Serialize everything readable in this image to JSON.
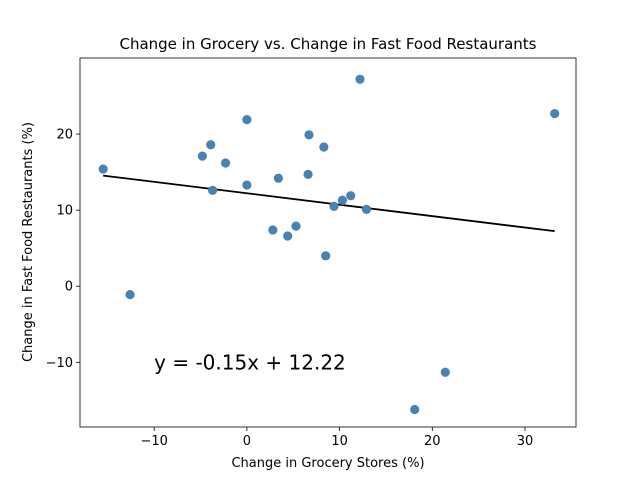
{
  "chart_data": {
    "type": "scatter",
    "title": "Change in Grocery vs. Change in Fast Food Restaurants",
    "xlabel": "Change in Grocery Stores (%)",
    "ylabel": "Change in Fast Food Restaurants (%)",
    "xlim": [
      -18,
      35.5
    ],
    "ylim": [
      -18.5,
      30
    ],
    "xticks": [
      -10,
      0,
      10,
      20,
      30
    ],
    "yticks": [
      -10,
      0,
      10,
      20
    ],
    "grid": false,
    "marker_color": "#4682b4",
    "line_color": "#000000",
    "points": [
      {
        "x": -15.5,
        "y": 15.4
      },
      {
        "x": -12.6,
        "y": -1.1
      },
      {
        "x": -4.8,
        "y": 17.1
      },
      {
        "x": -3.9,
        "y": 18.6
      },
      {
        "x": -3.7,
        "y": 12.6
      },
      {
        "x": -2.3,
        "y": 16.2
      },
      {
        "x": 0.0,
        "y": 21.9
      },
      {
        "x": 0.0,
        "y": 13.3
      },
      {
        "x": 2.8,
        "y": 7.4
      },
      {
        "x": 3.4,
        "y": 14.2
      },
      {
        "x": 4.4,
        "y": 6.6
      },
      {
        "x": 5.3,
        "y": 7.9
      },
      {
        "x": 6.6,
        "y": 14.7
      },
      {
        "x": 6.7,
        "y": 19.9
      },
      {
        "x": 8.3,
        "y": 18.3
      },
      {
        "x": 8.5,
        "y": 4.0
      },
      {
        "x": 9.4,
        "y": 10.5
      },
      {
        "x": 10.3,
        "y": 11.3
      },
      {
        "x": 11.2,
        "y": 11.9
      },
      {
        "x": 12.2,
        "y": 27.2
      },
      {
        "x": 12.9,
        "y": 10.1
      },
      {
        "x": 18.1,
        "y": -16.2
      },
      {
        "x": 21.4,
        "y": -11.3
      },
      {
        "x": 33.2,
        "y": 22.7
      }
    ],
    "regression": {
      "slope": -0.15,
      "intercept": 12.22,
      "x_range": [
        -15.5,
        33.2
      ]
    },
    "annotation": {
      "text": "y = -0.15x + 12.22",
      "x": -10,
      "y": -10
    }
  }
}
